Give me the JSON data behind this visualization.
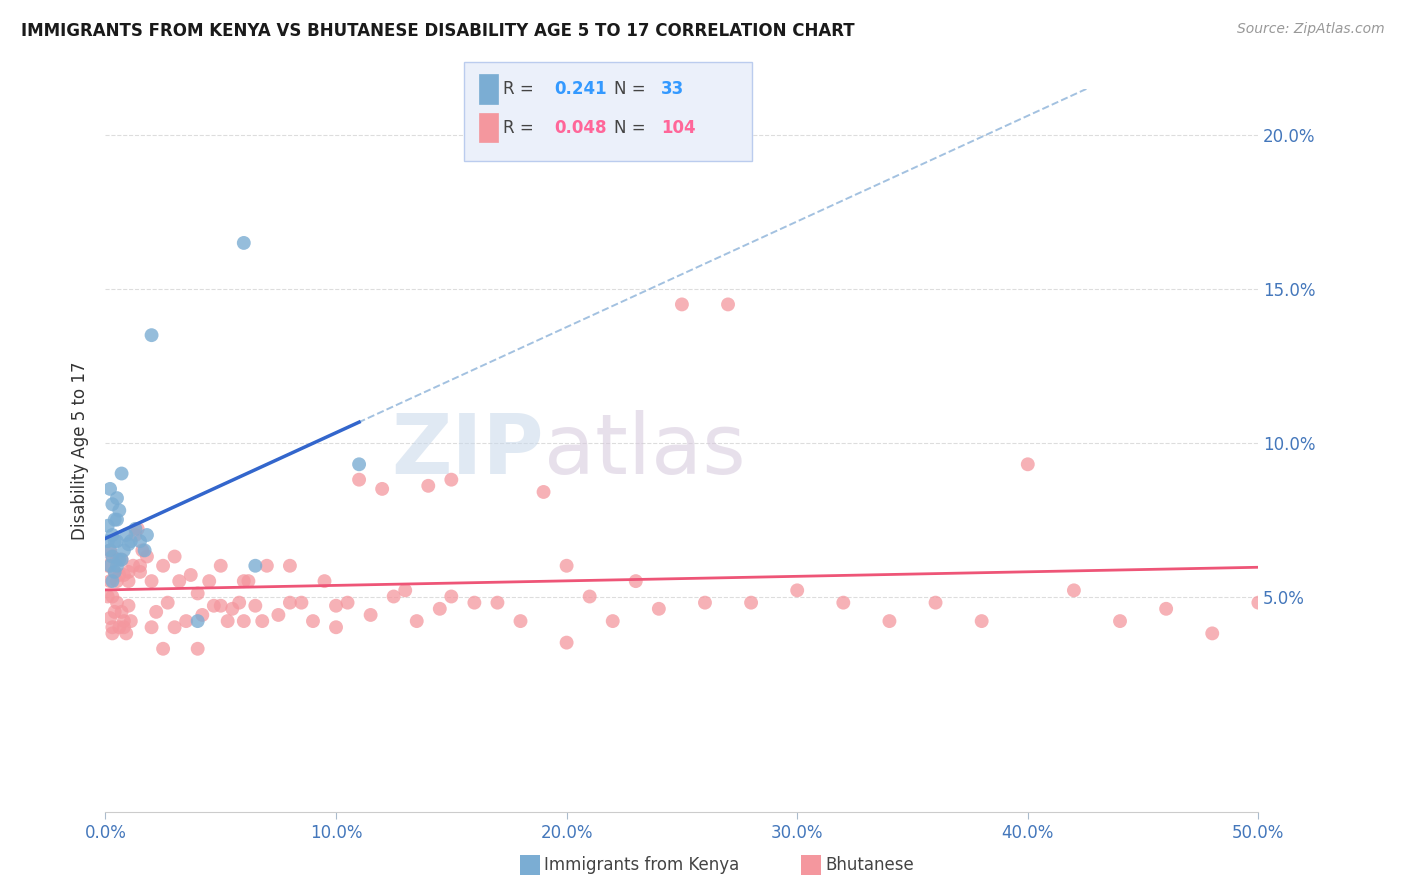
{
  "title": "IMMIGRANTS FROM KENYA VS BHUTANESE DISABILITY AGE 5 TO 17 CORRELATION CHART",
  "source": "Source: ZipAtlas.com",
  "ylabel": "Disability Age 5 to 17",
  "xlim": [
    0.0,
    0.5
  ],
  "ylim": [
    -0.02,
    0.215
  ],
  "xtick_vals": [
    0.0,
    0.1,
    0.2,
    0.3,
    0.4,
    0.5
  ],
  "xtick_labels": [
    "0.0%",
    "10.0%",
    "20.0%",
    "30.0%",
    "40.0%",
    "50.0%"
  ],
  "ytick_vals": [
    0.05,
    0.1,
    0.15,
    0.2
  ],
  "ytick_labels": [
    "5.0%",
    "10.0%",
    "15.0%",
    "20.0%"
  ],
  "kenya_R": 0.241,
  "kenya_N": 33,
  "bhutan_R": 0.048,
  "bhutan_N": 104,
  "kenya_color": "#7BADD3",
  "bhutan_color": "#F4979E",
  "kenya_x": [
    0.001,
    0.001,
    0.002,
    0.002,
    0.002,
    0.003,
    0.003,
    0.003,
    0.003,
    0.004,
    0.004,
    0.004,
    0.005,
    0.005,
    0.005,
    0.005,
    0.006,
    0.006,
    0.007,
    0.007,
    0.008,
    0.009,
    0.01,
    0.011,
    0.013,
    0.015,
    0.017,
    0.018,
    0.02,
    0.04,
    0.06,
    0.065,
    0.11
  ],
  "kenya_y": [
    0.068,
    0.073,
    0.06,
    0.065,
    0.085,
    0.055,
    0.063,
    0.07,
    0.08,
    0.058,
    0.068,
    0.075,
    0.06,
    0.068,
    0.075,
    0.082,
    0.062,
    0.078,
    0.062,
    0.09,
    0.065,
    0.07,
    0.067,
    0.068,
    0.072,
    0.068,
    0.065,
    0.07,
    0.135,
    0.042,
    0.165,
    0.06,
    0.093
  ],
  "bhutan_x": [
    0.001,
    0.001,
    0.002,
    0.002,
    0.002,
    0.003,
    0.003,
    0.003,
    0.004,
    0.004,
    0.005,
    0.005,
    0.006,
    0.006,
    0.007,
    0.007,
    0.008,
    0.008,
    0.009,
    0.01,
    0.01,
    0.011,
    0.012,
    0.013,
    0.014,
    0.015,
    0.016,
    0.018,
    0.02,
    0.022,
    0.025,
    0.027,
    0.03,
    0.032,
    0.035,
    0.037,
    0.04,
    0.042,
    0.045,
    0.047,
    0.05,
    0.053,
    0.055,
    0.058,
    0.06,
    0.062,
    0.065,
    0.068,
    0.07,
    0.075,
    0.08,
    0.085,
    0.09,
    0.095,
    0.1,
    0.105,
    0.11,
    0.115,
    0.12,
    0.125,
    0.13,
    0.135,
    0.14,
    0.145,
    0.15,
    0.16,
    0.17,
    0.18,
    0.19,
    0.2,
    0.21,
    0.22,
    0.23,
    0.24,
    0.25,
    0.26,
    0.27,
    0.28,
    0.3,
    0.32,
    0.34,
    0.36,
    0.38,
    0.4,
    0.42,
    0.44,
    0.46,
    0.48,
    0.5,
    0.003,
    0.005,
    0.008,
    0.01,
    0.015,
    0.02,
    0.025,
    0.03,
    0.04,
    0.05,
    0.06,
    0.08,
    0.1,
    0.15,
    0.2
  ],
  "bhutan_y": [
    0.05,
    0.06,
    0.043,
    0.055,
    0.065,
    0.038,
    0.05,
    0.063,
    0.045,
    0.058,
    0.048,
    0.062,
    0.04,
    0.057,
    0.045,
    0.062,
    0.042,
    0.057,
    0.038,
    0.047,
    0.058,
    0.042,
    0.06,
    0.07,
    0.072,
    0.058,
    0.065,
    0.063,
    0.055,
    0.045,
    0.06,
    0.048,
    0.063,
    0.055,
    0.042,
    0.057,
    0.051,
    0.044,
    0.055,
    0.047,
    0.06,
    0.042,
    0.046,
    0.048,
    0.042,
    0.055,
    0.047,
    0.042,
    0.06,
    0.044,
    0.06,
    0.048,
    0.042,
    0.055,
    0.047,
    0.048,
    0.088,
    0.044,
    0.085,
    0.05,
    0.052,
    0.042,
    0.086,
    0.046,
    0.088,
    0.048,
    0.048,
    0.042,
    0.084,
    0.06,
    0.05,
    0.042,
    0.055,
    0.046,
    0.145,
    0.048,
    0.145,
    0.048,
    0.052,
    0.048,
    0.042,
    0.048,
    0.042,
    0.093,
    0.052,
    0.042,
    0.046,
    0.038,
    0.048,
    0.04,
    0.055,
    0.04,
    0.055,
    0.06,
    0.04,
    0.033,
    0.04,
    0.033,
    0.047,
    0.055,
    0.048,
    0.04,
    0.05,
    0.035
  ],
  "dashed_line_color": "#99BBDD",
  "solid_kenya_color": "#3366CC",
  "solid_bhutan_color": "#EE5577",
  "grid_color": "#DDDDDD",
  "legend_bg": "#EBF0FA",
  "legend_edge": "#BBCCEE",
  "watermark_zip_color": "#C8D8EA",
  "watermark_atlas_color": "#D5C8DC"
}
